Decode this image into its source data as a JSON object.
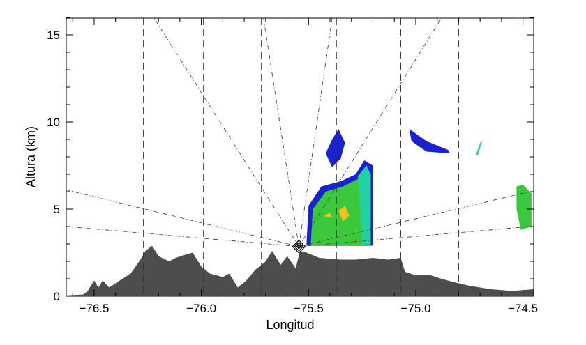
{
  "chart_data": {
    "type": "area",
    "xlabel": "Longitud",
    "ylabel": "Altura (km)",
    "xlim": [
      -76.63,
      -74.45
    ],
    "ylim": [
      -0.1,
      16
    ],
    "xticks": [
      -76.5,
      -76.0,
      -75.5,
      -75.0,
      -74.5
    ],
    "xtick_labels": [
      "−76.5",
      "−76.0",
      "−75.5",
      "−75.0",
      "−74.5"
    ],
    "yticks": [
      0,
      5,
      10,
      15
    ],
    "ytick_labels": [
      "0",
      "5",
      "10",
      "15"
    ],
    "grid": false,
    "colors": {
      "terrain": "#4d4d4d",
      "echo_weak": "#1a22d0",
      "echo_mid": "#22d0a0",
      "echo_strong": "#3cc83c",
      "echo_core": "#f0c020"
    },
    "radar_site": {
      "lon": -75.545,
      "alt": 2.85,
      "marker": "diamond"
    },
    "terrain": [
      [
        -76.63,
        0.05
      ],
      [
        -76.55,
        0.1
      ],
      [
        -76.53,
        0.3
      ],
      [
        -76.5,
        0.9
      ],
      [
        -76.48,
        0.5
      ],
      [
        -76.46,
        0.9
      ],
      [
        -76.43,
        0.5
      ],
      [
        -76.38,
        0.9
      ],
      [
        -76.33,
        1.3
      ],
      [
        -76.29,
        2.0
      ],
      [
        -76.26,
        2.6
      ],
      [
        -76.23,
        2.9
      ],
      [
        -76.2,
        2.3
      ],
      [
        -76.15,
        2.0
      ],
      [
        -76.12,
        2.2
      ],
      [
        -76.07,
        2.4
      ],
      [
        -76.04,
        2.5
      ],
      [
        -76.0,
        1.7
      ],
      [
        -75.96,
        1.3
      ],
      [
        -75.9,
        1.1
      ],
      [
        -75.87,
        1.3
      ],
      [
        -75.83,
        0.5
      ],
      [
        -75.79,
        0.9
      ],
      [
        -75.75,
        1.5
      ],
      [
        -75.7,
        2.0
      ],
      [
        -75.67,
        2.6
      ],
      [
        -75.63,
        1.8
      ],
      [
        -75.6,
        2.3
      ],
      [
        -75.56,
        1.6
      ],
      [
        -75.54,
        2.6
      ],
      [
        -75.51,
        2.5
      ],
      [
        -75.45,
        2.2
      ],
      [
        -75.35,
        2.1
      ],
      [
        -75.28,
        2.1
      ],
      [
        -75.2,
        2.2
      ],
      [
        -75.13,
        2.1
      ],
      [
        -75.07,
        2.2
      ],
      [
        -75.05,
        1.4
      ],
      [
        -75.0,
        1.2
      ],
      [
        -74.93,
        1.2
      ],
      [
        -74.88,
        1.0
      ],
      [
        -74.82,
        0.8
      ],
      [
        -74.75,
        0.6
      ],
      [
        -74.65,
        0.4
      ],
      [
        -74.55,
        0.3
      ],
      [
        -74.45,
        0.4
      ]
    ],
    "range_lines_lon": [
      -76.27,
      -75.99,
      -75.72,
      -75.37,
      -75.07,
      -74.8
    ],
    "beam_rays": [
      [
        -76.22,
        16
      ],
      [
        -75.71,
        16
      ],
      [
        -75.39,
        16
      ],
      [
        -74.88,
        16
      ],
      [
        -76.63,
        6.1
      ],
      [
        -76.63,
        4.0
      ],
      [
        -74.47,
        6.0
      ],
      [
        -74.47,
        4.0
      ]
    ],
    "echoes": [
      {
        "level": "weak",
        "points": [
          [
            -75.51,
            2.9
          ],
          [
            -75.5,
            5.2
          ],
          [
            -75.44,
            6.3
          ],
          [
            -75.35,
            6.6
          ],
          [
            -75.28,
            7.0
          ],
          [
            -75.24,
            7.8
          ],
          [
            -75.2,
            7.5
          ],
          [
            -75.2,
            2.9
          ]
        ]
      },
      {
        "level": "strong",
        "points": [
          [
            -75.49,
            2.95
          ],
          [
            -75.48,
            5.0
          ],
          [
            -75.42,
            6.0
          ],
          [
            -75.34,
            6.3
          ],
          [
            -75.26,
            6.8
          ],
          [
            -75.22,
            6.6
          ],
          [
            -75.21,
            2.95
          ]
        ]
      },
      {
        "level": "mid",
        "points": [
          [
            -75.27,
            6.9
          ],
          [
            -75.23,
            7.5
          ],
          [
            -75.21,
            7.0
          ],
          [
            -75.21,
            3.0
          ],
          [
            -75.25,
            3.0
          ]
        ]
      },
      {
        "level": "core",
        "points": [
          [
            -75.36,
            4.9
          ],
          [
            -75.33,
            5.2
          ],
          [
            -75.31,
            4.6
          ],
          [
            -75.34,
            4.3
          ]
        ]
      },
      {
        "level": "core",
        "points": [
          [
            -75.43,
            4.6
          ],
          [
            -75.4,
            4.8
          ],
          [
            -75.39,
            4.5
          ]
        ]
      },
      {
        "level": "weak",
        "points": [
          [
            -75.42,
            8.2
          ],
          [
            -75.39,
            9.0
          ],
          [
            -75.36,
            9.6
          ],
          [
            -75.33,
            8.8
          ],
          [
            -75.35,
            7.9
          ],
          [
            -75.39,
            7.4
          ]
        ]
      },
      {
        "level": "weak",
        "points": [
          [
            -75.03,
            9.6
          ],
          [
            -74.95,
            8.9
          ],
          [
            -74.85,
            8.4
          ],
          [
            -74.84,
            8.2
          ],
          [
            -74.95,
            8.3
          ],
          [
            -75.02,
            8.9
          ]
        ]
      },
      {
        "level": "mid",
        "points": [
          [
            -74.7,
            8.8
          ],
          [
            -74.69,
            8.9
          ],
          [
            -74.71,
            8.1
          ],
          [
            -74.72,
            8.1
          ]
        ]
      },
      {
        "level": "strong",
        "points": [
          [
            -74.53,
            6.3
          ],
          [
            -74.5,
            6.4
          ],
          [
            -74.46,
            5.9
          ],
          [
            -74.46,
            4.0
          ],
          [
            -74.51,
            3.8
          ],
          [
            -74.53,
            5.0
          ]
        ]
      }
    ]
  }
}
